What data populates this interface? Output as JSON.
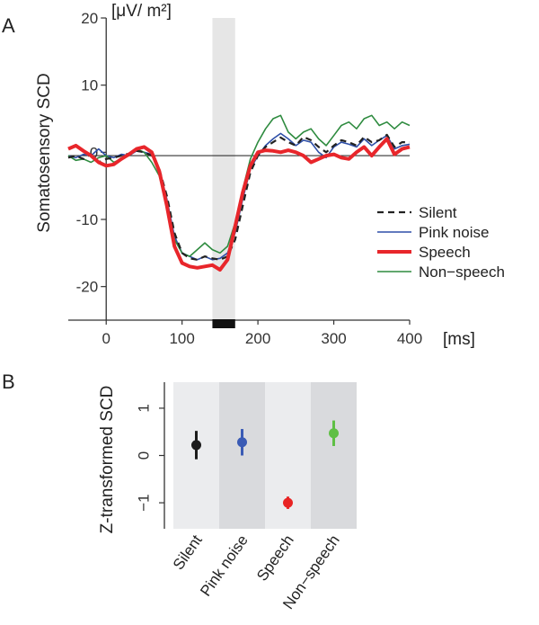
{
  "chart_data": [
    {
      "panel": "A",
      "type": "line",
      "ylabel": "Somatosensory SCD",
      "yunit": "[μV/ m²]",
      "xunit": "[ms]",
      "xlim": [
        -50,
        400
      ],
      "ylim": [
        -25,
        20
      ],
      "xticks": [
        0,
        100,
        200,
        300,
        400
      ],
      "yticks": [
        -20,
        -10,
        0,
        10,
        20
      ],
      "baseline": -0.5,
      "highlight_window": [
        140,
        170
      ],
      "marker_window": [
        140,
        170
      ],
      "series": [
        {
          "name": "Silent",
          "color": "#222222",
          "style": "dashed",
          "x": [
            -50,
            -40,
            -30,
            -20,
            -10,
            0,
            10,
            20,
            30,
            40,
            50,
            60,
            70,
            80,
            90,
            100,
            110,
            120,
            130,
            140,
            150,
            160,
            170,
            180,
            190,
            200,
            210,
            220,
            230,
            240,
            250,
            260,
            270,
            280,
            290,
            300,
            310,
            320,
            330,
            340,
            350,
            360,
            370,
            380,
            390,
            400
          ],
          "y": [
            -0.8,
            -0.5,
            -1.0,
            -0.3,
            -1.5,
            -1.0,
            -0.8,
            -0.5,
            -0.2,
            0.2,
            0.0,
            -0.5,
            -2.5,
            -6.5,
            -12.0,
            -15.0,
            -15.8,
            -16.0,
            -15.5,
            -15.8,
            -16.0,
            -15.5,
            -13.0,
            -8.0,
            -3.0,
            -0.5,
            0.8,
            1.5,
            2.2,
            1.5,
            1.0,
            2.3,
            1.8,
            0.8,
            0.0,
            1.0,
            1.8,
            1.5,
            1.0,
            2.3,
            1.5,
            1.8,
            2.6,
            0.8,
            1.5,
            1.5
          ]
        },
        {
          "name": "Pink noise",
          "color": "#2e4fa8",
          "style": "solid",
          "x": [
            -50,
            -40,
            -30,
            -20,
            -10,
            0,
            10,
            20,
            30,
            40,
            50,
            60,
            70,
            80,
            90,
            100,
            110,
            120,
            130,
            140,
            150,
            160,
            170,
            180,
            190,
            200,
            210,
            220,
            230,
            240,
            250,
            260,
            270,
            280,
            290,
            300,
            310,
            320,
            330,
            340,
            350,
            360,
            370,
            380,
            390,
            400
          ],
          "y": [
            -0.5,
            -0.8,
            -0.3,
            -0.5,
            0.5,
            -0.5,
            -0.8,
            -0.3,
            -0.5,
            0.2,
            0.0,
            -0.3,
            -2.5,
            -7.0,
            -12.5,
            -15.0,
            -15.5,
            -16.0,
            -15.5,
            -16.0,
            -15.8,
            -15.0,
            -12.0,
            -7.0,
            -2.5,
            -0.5,
            1.0,
            2.0,
            2.8,
            2.0,
            1.0,
            1.8,
            1.5,
            0.0,
            -0.8,
            0.8,
            1.5,
            1.2,
            0.8,
            2.0,
            1.0,
            1.8,
            2.5,
            0.5,
            1.0,
            1.2
          ]
        },
        {
          "name": "Speech",
          "color": "#e8262b",
          "style": "solid",
          "x": [
            -50,
            -40,
            -30,
            -20,
            -10,
            0,
            10,
            20,
            30,
            40,
            50,
            60,
            70,
            80,
            90,
            100,
            110,
            120,
            130,
            140,
            150,
            160,
            170,
            180,
            190,
            200,
            210,
            220,
            230,
            240,
            250,
            260,
            270,
            280,
            290,
            300,
            310,
            320,
            330,
            340,
            350,
            360,
            370,
            380,
            390,
            400
          ],
          "y": [
            0.5,
            1.0,
            0.2,
            -0.5,
            -1.5,
            -2.0,
            -1.8,
            -1.0,
            -0.3,
            0.5,
            0.8,
            0.0,
            -2.8,
            -8.0,
            -14.0,
            -16.5,
            -17.0,
            -17.2,
            -17.0,
            -16.8,
            -17.5,
            -16.0,
            -11.0,
            -6.0,
            -2.0,
            0.0,
            0.3,
            0.2,
            0.0,
            0.3,
            0.0,
            -0.5,
            -1.5,
            -1.0,
            -0.5,
            -0.3,
            -0.8,
            -1.0,
            0.0,
            0.8,
            -0.5,
            0.8,
            2.0,
            -0.3,
            0.5,
            0.8
          ]
        },
        {
          "name": "Non-speech",
          "color": "#2e8b3f",
          "style": "solid",
          "x": [
            -50,
            -40,
            -30,
            -20,
            -10,
            0,
            10,
            20,
            30,
            40,
            50,
            60,
            70,
            80,
            90,
            100,
            110,
            120,
            130,
            140,
            150,
            160,
            170,
            180,
            190,
            200,
            210,
            220,
            230,
            240,
            250,
            260,
            270,
            280,
            290,
            300,
            310,
            320,
            330,
            340,
            350,
            360,
            370,
            380,
            390,
            400
          ],
          "y": [
            -0.5,
            -1.2,
            -1.0,
            -1.5,
            -0.8,
            -0.5,
            -1.5,
            -1.0,
            -0.5,
            0.5,
            0.0,
            -1.5,
            -3.5,
            -8.0,
            -13.0,
            -15.0,
            -15.5,
            -14.5,
            -13.5,
            -14.5,
            -15.0,
            -14.0,
            -10.5,
            -5.5,
            -1.0,
            1.5,
            3.5,
            5.0,
            5.5,
            3.0,
            2.0,
            3.0,
            3.5,
            2.0,
            1.0,
            2.5,
            4.0,
            4.5,
            3.5,
            5.0,
            5.5,
            4.0,
            4.5,
            3.5,
            4.5,
            4.0
          ]
        }
      ]
    },
    {
      "panel": "B",
      "type": "scatter",
      "ylabel": "Z-transformed SCD",
      "ylim": [
        -1.55,
        1.55
      ],
      "yticks": [
        -1,
        0,
        1
      ],
      "categories": [
        "Silent",
        "Pink noise",
        "Speech",
        "Non-speech"
      ],
      "values": [
        0.22,
        0.28,
        -1.0,
        0.47
      ],
      "error": [
        0.3,
        0.28,
        0.13,
        0.27
      ],
      "colors": [
        "#1c1c1c",
        "#3a5bb5",
        "#e82323",
        "#5fbf45"
      ],
      "band_colors": [
        "#ebecee",
        "#d9dadd",
        "#ebecee",
        "#d9dadd"
      ]
    }
  ]
}
